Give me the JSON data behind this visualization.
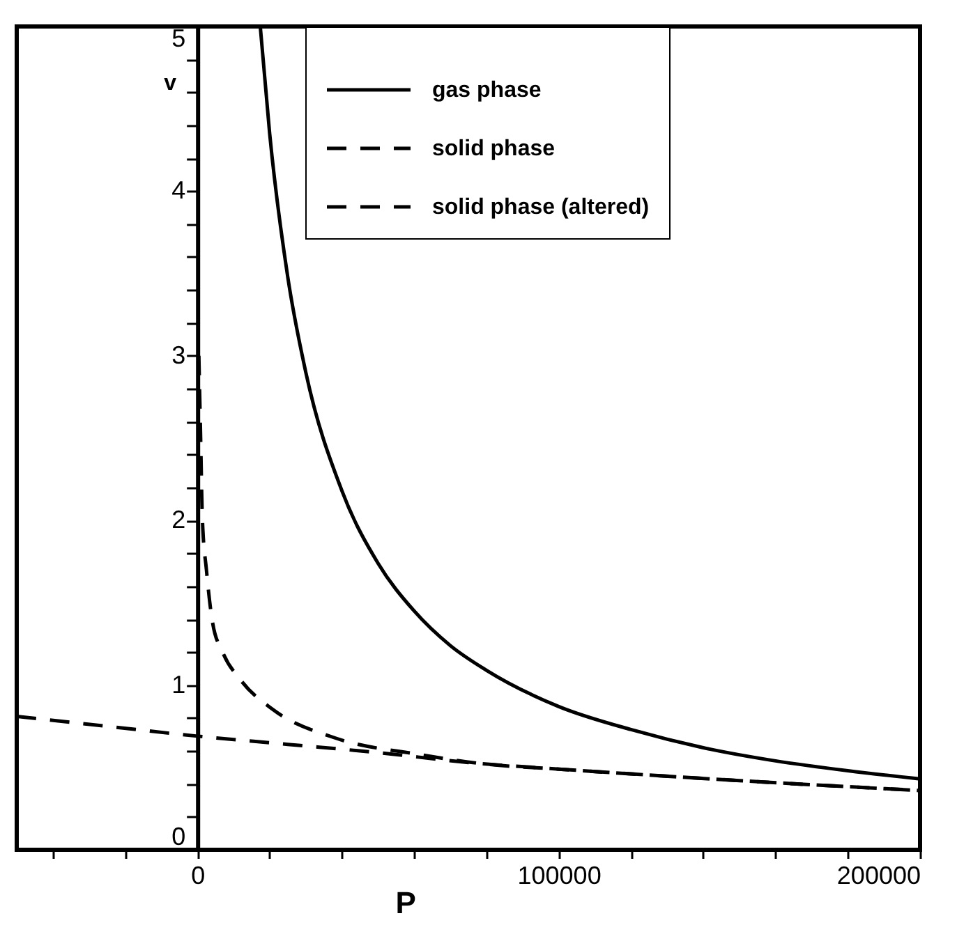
{
  "chart_data": {
    "type": "line",
    "xlabel": "P",
    "ylabel": "v",
    "xlim": [
      -50000,
      200000
    ],
    "ylim": [
      0,
      5
    ],
    "xticks": [
      {
        "value": -40000,
        "label": null
      },
      {
        "value": -20000,
        "label": null
      },
      0,
      {
        "value": 20000,
        "label": null
      },
      {
        "value": 40000,
        "label": null
      },
      {
        "value": 60000,
        "label": null
      },
      {
        "value": 80000,
        "label": null
      },
      100000,
      {
        "value": 120000,
        "label": null
      },
      {
        "value": 140000,
        "label": null
      },
      {
        "value": 160000,
        "label": null
      },
      {
        "value": 180000,
        "label": null
      },
      200000
    ],
    "yticks": [
      0,
      {
        "value": 0.2,
        "label": null
      },
      {
        "value": 0.4,
        "label": null
      },
      {
        "value": 0.6,
        "label": null
      },
      {
        "value": 0.8,
        "label": null
      },
      1,
      {
        "value": 1.2,
        "label": null
      },
      {
        "value": 1.4,
        "label": null
      },
      {
        "value": 1.6,
        "label": null
      },
      {
        "value": 1.8,
        "label": null
      },
      2,
      {
        "value": 2.2,
        "label": null
      },
      {
        "value": 2.4,
        "label": null
      },
      {
        "value": 2.6,
        "label": null
      },
      {
        "value": 2.8,
        "label": null
      },
      3,
      {
        "value": 3.2,
        "label": null
      },
      {
        "value": 3.4,
        "label": null
      },
      {
        "value": 3.6,
        "label": null
      },
      {
        "value": 3.8,
        "label": null
      },
      4,
      {
        "value": 4.2,
        "label": null
      },
      {
        "value": 4.4,
        "label": null
      },
      {
        "value": 4.6,
        "label": null
      },
      {
        "value": 4.8,
        "label": null
      },
      5
    ],
    "grid": false,
    "legend": "top right",
    "marker": "none",
    "series": [
      {
        "name": "gas phase",
        "color": "#000000",
        "line_style": "solid",
        "x": [
          17400,
          20000,
          25000,
          30000,
          40000,
          50000,
          60000,
          70000,
          80000,
          100000,
          120000,
          140000,
          160000,
          180000,
          200000
        ],
        "values": [
          5,
          4.35,
          3.48,
          2.9,
          2.18,
          1.74,
          1.45,
          1.24,
          1.09,
          0.87,
          0.73,
          0.62,
          0.54,
          0.48,
          0.43
        ]
      },
      {
        "name": "solid phase",
        "color": "#000000",
        "line_style": "dashed",
        "x": [
          -50000,
          -25000,
          0,
          25000,
          50000,
          75000,
          100000,
          150000,
          200000
        ],
        "values": [
          0.81,
          0.75,
          0.69,
          0.64,
          0.59,
          0.53,
          0.49,
          0.42,
          0.36
        ]
      },
      {
        "name": "solid phase (altered)",
        "color": "#000000",
        "line_style": "dashed",
        "x": [
          400,
          800,
          1400,
          2500,
          4200,
          7000,
          12000,
          21000,
          38000,
          61000,
          80000,
          100000,
          150000,
          200000
        ],
        "values": [
          3.0,
          2.6,
          2.0,
          1.7,
          1.38,
          1.2,
          1.03,
          0.85,
          0.68,
          0.58,
          0.52,
          0.49,
          0.42,
          0.36
        ]
      }
    ]
  }
}
